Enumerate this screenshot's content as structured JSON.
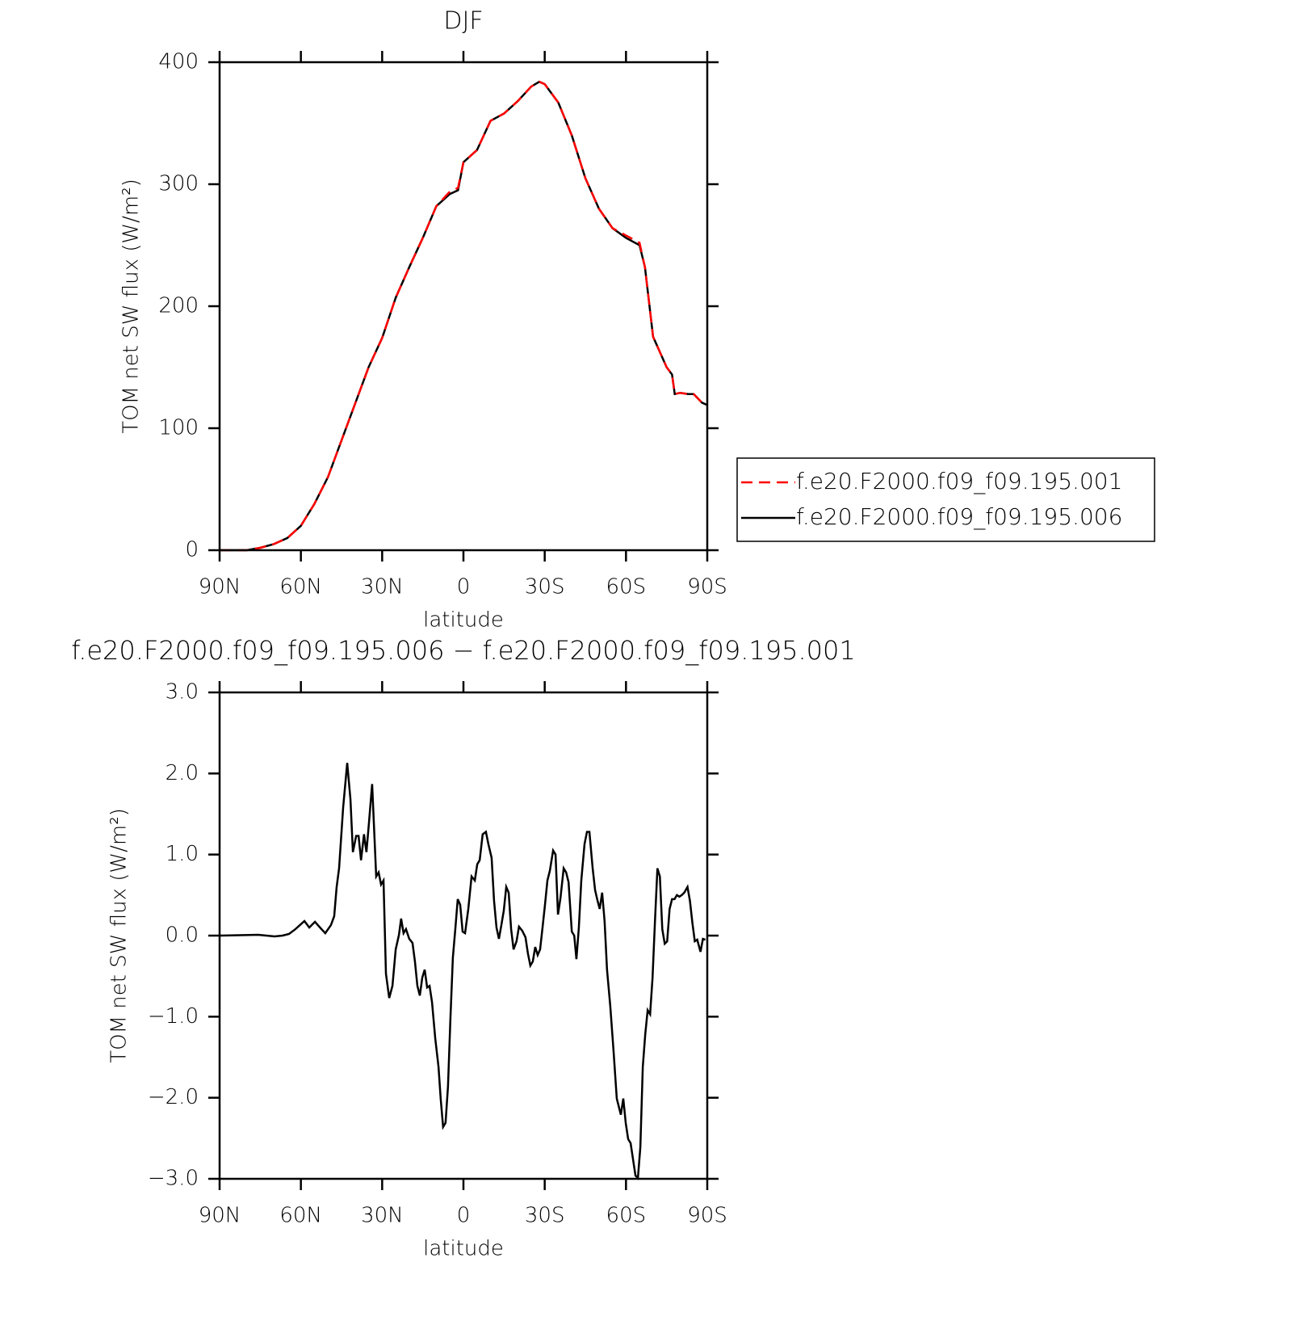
{
  "chart_data": [
    {
      "type": "line",
      "title": "DJF",
      "xlabel": "latitude",
      "ylabel": "TOM net SW flux (W/m²)",
      "x": [
        90,
        80,
        75,
        70,
        65,
        60,
        55,
        50,
        45,
        40,
        35,
        30,
        25,
        20,
        15,
        10,
        5,
        2,
        0,
        -5,
        -10,
        -15,
        -20,
        -25,
        -28,
        -30,
        -35,
        -40,
        -45,
        -50,
        -55,
        -60,
        -65,
        -67,
        -70,
        -75,
        -77,
        -78,
        -80,
        -83,
        -85,
        -88,
        -90
      ],
      "xlim": [
        90,
        -90
      ],
      "xticks": [
        {
          "value": 90,
          "label": "90N"
        },
        {
          "value": 60,
          "label": "60N"
        },
        {
          "value": 30,
          "label": "30N"
        },
        0,
        {
          "value": -30,
          "label": "30S"
        },
        {
          "value": -60,
          "label": "60S"
        },
        {
          "value": -90,
          "label": "90S"
        }
      ],
      "ylim": [
        0,
        400
      ],
      "yticks": [
        0,
        100,
        200,
        300,
        400
      ],
      "legend": "right",
      "series": [
        {
          "name": "f.e20.F2000.f09_f09.195.001",
          "color": "#ff0000",
          "dash": "dashed",
          "values": [
            0,
            0,
            2,
            5,
            10,
            20,
            38,
            60,
            90,
            120,
            150,
            174,
            207,
            232,
            256,
            282,
            294,
            297,
            318,
            328,
            352,
            358,
            368,
            380,
            384,
            382,
            367,
            340,
            305,
            280,
            264,
            258,
            252,
            232,
            175,
            150,
            144,
            128,
            129,
            128,
            128,
            121,
            119
          ]
        },
        {
          "name": "f.e20.F2000.f09_f09.195.006",
          "color": "#000000",
          "dash": "solid",
          "values": [
            0,
            0,
            2,
            5,
            10,
            20,
            38,
            60,
            90,
            120,
            150,
            174,
            207,
            232,
            256,
            282,
            292,
            295,
            318,
            328,
            352,
            358,
            368,
            380,
            384,
            382,
            367,
            340,
            305,
            280,
            264,
            256,
            250,
            232,
            175,
            150,
            144,
            128,
            129,
            128,
            128,
            121,
            119
          ]
        }
      ]
    },
    {
      "type": "line",
      "title": "f.e20.F2000.f09_f09.195.006 − f.e20.F2000.f09_f09.195.001",
      "xlabel": "latitude",
      "ylabel": "TOM net SW flux (W/m²)",
      "x": [
        90,
        75.7,
        69.7,
        66.8,
        64.4,
        62,
        58.7,
        56.9,
        54.8,
        52.4,
        51,
        48.9,
        47.7,
        46.8,
        45.9,
        44.4,
        42.9,
        41.7,
        40.8,
        39.6,
        38.7,
        37.8,
        36.7,
        35.8,
        34.9,
        33.7,
        32.2,
        31.3,
        30.4,
        29.5,
        28.6,
        27.4,
        26.2,
        25,
        23.8,
        23,
        22.1,
        21.2,
        20,
        18.8,
        17.9,
        17,
        16.1,
        15.2,
        14.3,
        13.4,
        12.5,
        11.6,
        10.4,
        9.2,
        8.4,
        7.5,
        6.6,
        5.7,
        4.8,
        3.9,
        3,
        2.1,
        1.2,
        0.3,
        -0.6,
        -1.8,
        -3,
        -4.2,
        -5.1,
        -6,
        -7.1,
        -8.3,
        -9.2,
        -10.4,
        -11.3,
        -12.2,
        -13.1,
        -14,
        -14.9,
        -15.8,
        -16.7,
        -17.6,
        -18.5,
        -19.6,
        -20.5,
        -21.7,
        -22.9,
        -23.8,
        -24.7,
        -25.6,
        -26.5,
        -27.4,
        -28.3,
        -29.2,
        -30.1,
        -31,
        -31.9,
        -33.1,
        -34,
        -34.9,
        -35.8,
        -37,
        -37.9,
        -38.8,
        -40,
        -40.9,
        -41.7,
        -42.6,
        -43.5,
        -44.7,
        -45.6,
        -46.5,
        -47.7,
        -48.6,
        -49.5,
        -50.3,
        -51.2,
        -52.1,
        -53,
        -54.2,
        -55.4,
        -56.6,
        -57.5,
        -58.1,
        -59,
        -59.9,
        -60.8,
        -61.7,
        -62.6,
        -63.5,
        -64.4,
        -65.3,
        -66.2,
        -67.1,
        -68,
        -68.9,
        -69.8,
        -70.7,
        -71.6,
        -72.5,
        -73.4,
        -74.3,
        -75.2,
        -76.1,
        -77,
        -77.9,
        -78.8,
        -79.7,
        -80.6,
        -81.5,
        -82.7,
        -83.6,
        -84.5,
        -85.4,
        -86.3,
        -87.5,
        -88.4,
        -89.3
      ],
      "xlim": [
        90,
        -90
      ],
      "xticks": [
        {
          "value": 90,
          "label": "90N"
        },
        {
          "value": 60,
          "label": "60N"
        },
        {
          "value": 30,
          "label": "30N"
        },
        0,
        {
          "value": -30,
          "label": "30S"
        },
        {
          "value": -60,
          "label": "60S"
        },
        {
          "value": -90,
          "label": "90S"
        }
      ],
      "ylim": [
        -3,
        3
      ],
      "yticks": [
        {
          "value": -3,
          "label": "−3.0"
        },
        {
          "value": -2,
          "label": "−2.0"
        },
        {
          "value": -1,
          "label": "−1.0"
        },
        {
          "value": 0,
          "label": "0.0"
        },
        {
          "value": 1,
          "label": "1.0"
        },
        {
          "value": 2,
          "label": "2.0"
        },
        {
          "value": 3,
          "label": "3.0"
        }
      ],
      "series": [
        {
          "color": "#000000",
          "dash": "solid",
          "values": [
            0,
            0.01,
            -0.01,
            0,
            0.02,
            0.08,
            0.18,
            0.1,
            0.17,
            0.08,
            0.03,
            0.13,
            0.24,
            0.6,
            0.83,
            1.58,
            2.13,
            1.68,
            1.03,
            1.23,
            1.23,
            0.93,
            1.25,
            1.03,
            1.38,
            1.87,
            0.73,
            0.78,
            0.63,
            0.68,
            -0.47,
            -0.77,
            -0.62,
            -0.17,
            0.01,
            0.21,
            0.03,
            0.08,
            -0.04,
            -0.09,
            -0.32,
            -0.62,
            -0.74,
            -0.52,
            -0.42,
            -0.64,
            -0.62,
            -0.82,
            -1.27,
            -1.62,
            -2.01,
            -2.36,
            -2.31,
            -1.86,
            -1.02,
            -0.27,
            0.08,
            0.45,
            0.38,
            0.05,
            0.03,
            0.33,
            0.73,
            0.68,
            0.88,
            0.93,
            1.25,
            1.28,
            1.13,
            0.96,
            0.43,
            0.1,
            -0.04,
            0.13,
            0.31,
            0.6,
            0.53,
            0.08,
            -0.17,
            -0.07,
            0.11,
            0.06,
            -0.02,
            -0.22,
            -0.37,
            -0.32,
            -0.14,
            -0.24,
            -0.17,
            0.1,
            0.38,
            0.68,
            0.8,
            1.05,
            1,
            0.26,
            0.46,
            0.83,
            0.78,
            0.66,
            0.05,
            0,
            -0.29,
            0.1,
            0.68,
            1.13,
            1.28,
            1.28,
            0.83,
            0.56,
            0.43,
            0.33,
            0.53,
            0.18,
            -0.42,
            -0.87,
            -1.42,
            -2.01,
            -2.13,
            -2.21,
            -2.01,
            -2.31,
            -2.51,
            -2.56,
            -2.76,
            -2.96,
            -2.99,
            -2.61,
            -1.62,
            -1.22,
            -0.92,
            -0.97,
            -0.52,
            0.18,
            0.83,
            0.73,
            0.08,
            -0.1,
            -0.07,
            0.33,
            0.45,
            0.45,
            0.5,
            0.48,
            0.5,
            0.53,
            0.6,
            0.43,
            0.16,
            -0.07,
            -0.05,
            -0.2,
            -0.04,
            -0.05
          ]
        }
      ]
    }
  ]
}
